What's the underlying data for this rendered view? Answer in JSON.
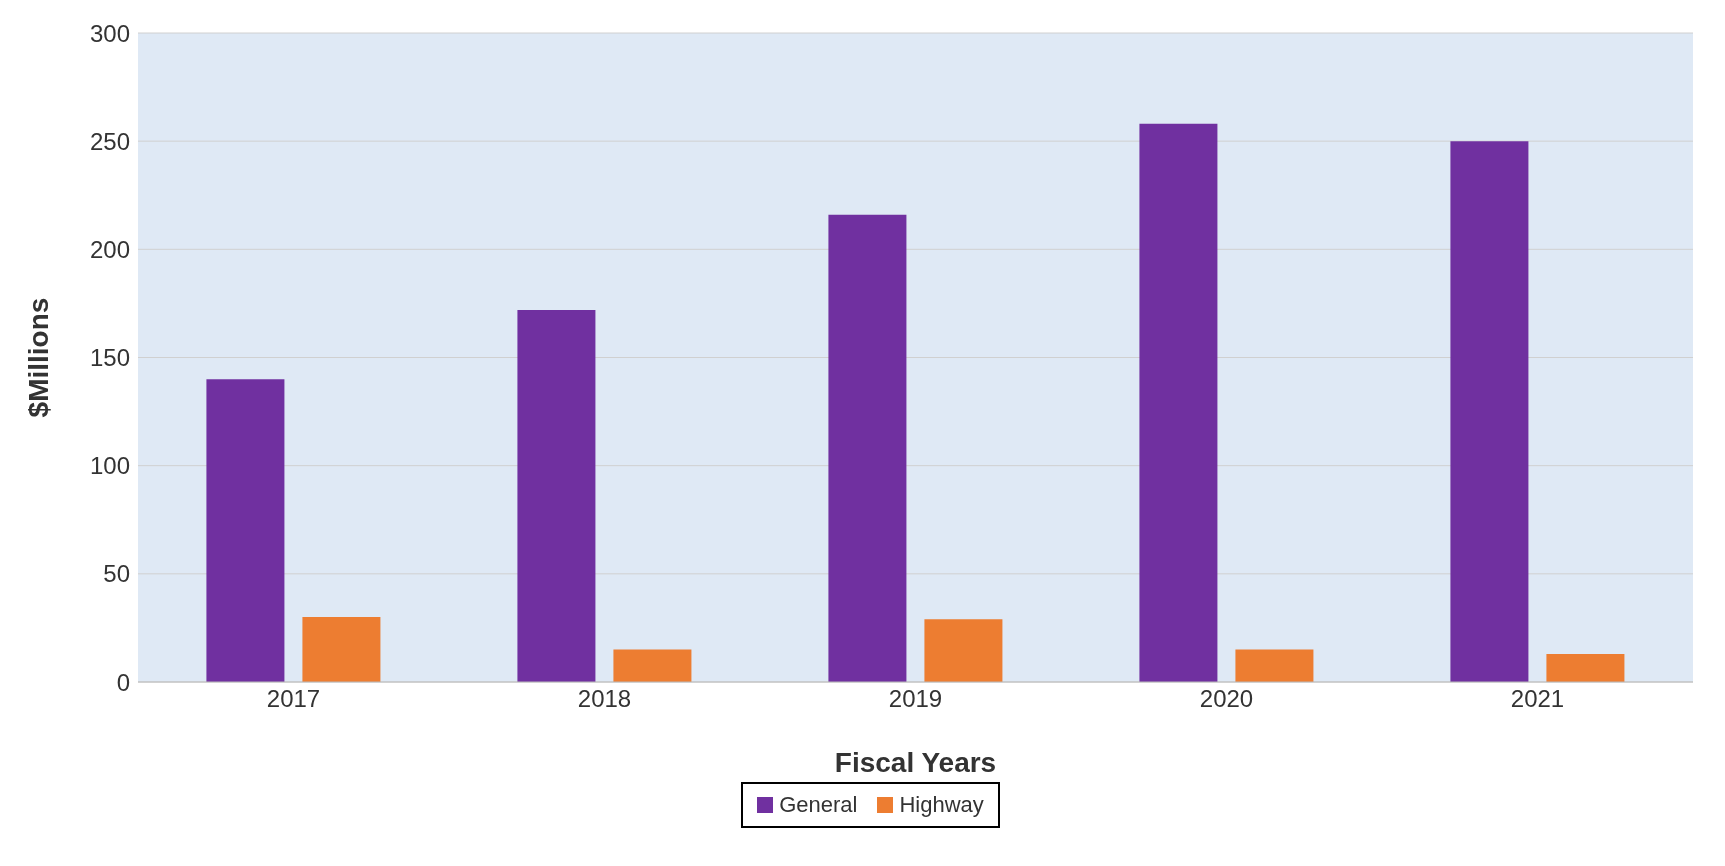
{
  "chart_data": {
    "type": "bar",
    "xlabel": "Fiscal Years",
    "ylabel": "$Millions",
    "categories": [
      "2017",
      "2018",
      "2019",
      "2020",
      "2021"
    ],
    "series": [
      {
        "name": "General",
        "color": "#7030a0",
        "values": [
          140,
          172,
          216,
          258,
          250
        ]
      },
      {
        "name": "Highway",
        "color": "#ed7d31",
        "values": [
          30,
          15,
          29,
          15,
          13
        ]
      }
    ],
    "ylim": [
      0,
      300
    ],
    "yticks": [
      0,
      50,
      100,
      150,
      200,
      250,
      300
    ],
    "grid": "y",
    "legend": "bottom"
  }
}
